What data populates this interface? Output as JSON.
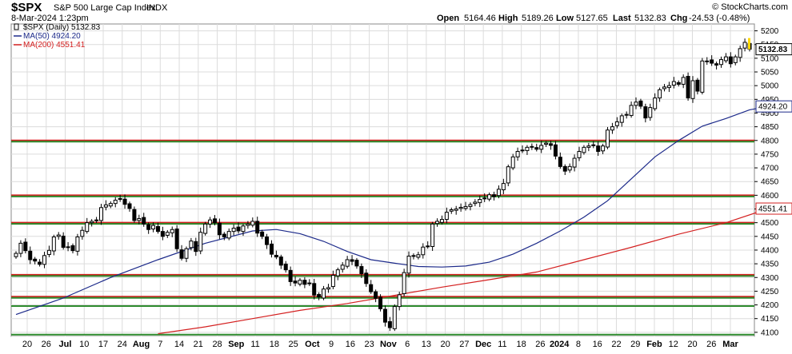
{
  "header": {
    "symbol": "$SPX",
    "name": "S&P 500 Large Cap Index",
    "exchange": "INDX",
    "date": "8-Mar-2024 1:23pm",
    "copyright": "© StockCharts.com",
    "open_label": "Open",
    "open": "5164.46",
    "high_label": "High",
    "high": "5189.26",
    "low_label": "Low",
    "low": "5127.65",
    "last_label": "Last",
    "last": "5132.83",
    "chg_label": "Chg",
    "chg": "-24.53 (-0.48%)"
  },
  "legend": [
    {
      "text": "$SPX (Daily) 5132.83",
      "color": "#000000",
      "marker": "none"
    },
    {
      "text": "MA(50) 4924.20",
      "color": "#1c2a8a",
      "marker": "line"
    },
    {
      "text": "MA(200) 4551.41",
      "color": "#d42020",
      "marker": "line"
    }
  ],
  "colors": {
    "candle": "#000000",
    "ma50": "#1c2a8a",
    "ma200": "#d42020",
    "resistance": "#d42020",
    "support": "#2e8b2e",
    "grid": "#dcdcdc",
    "last_box": "#ffd800"
  },
  "chart_data": {
    "type": "candlestick",
    "title": "$SPX S&P 500 Large Cap Index INDX",
    "ylim": [
      4085,
      5225
    ],
    "y_ticks": [
      4100,
      4150,
      4200,
      4250,
      4300,
      4350,
      4400,
      4450,
      4500,
      4550,
      4600,
      4650,
      4700,
      4750,
      4800,
      4850,
      4900,
      4950,
      5000,
      5050,
      5100,
      5150,
      5200
    ],
    "x_labels": [
      "20",
      "26",
      "Jul",
      "10",
      "17",
      "24",
      "Aug",
      "7",
      "14",
      "21",
      "28",
      "Sep",
      "11",
      "18",
      "25",
      "Oct",
      "9",
      "16",
      "23",
      "Nov",
      "6",
      "13",
      "20",
      "27",
      "Dec",
      "11",
      "18",
      "26",
      "2024",
      "8",
      "16",
      "22",
      "29",
      "Feb",
      "12",
      "20",
      "26",
      "Mar"
    ],
    "value_labels": [
      {
        "text": "5132.83",
        "value": 5132.83,
        "style": "last"
      },
      {
        "text": "4924.20",
        "value": 4924.2,
        "style": "ma50"
      },
      {
        "text": "4551.41",
        "value": 4551.41,
        "style": "ma200"
      }
    ],
    "horizontal_lines": [
      {
        "value": 4800,
        "color": "red"
      },
      {
        "value": 4600,
        "color": "red"
      },
      {
        "value": 4500,
        "color": "red"
      },
      {
        "value": 4310,
        "color": "red"
      },
      {
        "value": 4230,
        "color": "red"
      },
      {
        "value": 4800,
        "color": "green"
      },
      {
        "value": 4600,
        "color": "green"
      },
      {
        "value": 4500,
        "color": "green"
      },
      {
        "value": 4310,
        "color": "green"
      },
      {
        "value": 4230,
        "color": "green"
      },
      {
        "value": 4200,
        "color": "green"
      },
      {
        "value": 4096,
        "color": "green"
      }
    ],
    "closes": [
      4388,
      4425,
      4398,
      4365,
      4360,
      4348,
      4380,
      4399,
      4448,
      4455,
      4410,
      4412,
      4398,
      4448,
      4472,
      4500,
      4505,
      4510,
      4555,
      4565,
      4570,
      4582,
      4588,
      4567,
      4552,
      4508,
      4515,
      4495,
      4475,
      4490,
      4468,
      4450,
      4465,
      4475,
      4405,
      4370,
      4405,
      4433,
      4395,
      4465,
      4495,
      4510,
      4500,
      4456,
      4448,
      4468,
      4480,
      4470,
      4488,
      4495,
      4505,
      4462,
      4450,
      4420,
      4385,
      4375,
      4345,
      4328,
      4285,
      4280,
      4290,
      4275,
      4280,
      4236,
      4229,
      4258,
      4263,
      4308,
      4328,
      4345,
      4365,
      4359,
      4342,
      4314,
      4278,
      4248,
      4224,
      4186,
      4137,
      4117,
      4194,
      4237,
      4318,
      4378,
      4378,
      4383,
      4411,
      4415,
      4495,
      4505,
      4512,
      4538,
      4547,
      4550,
      4556,
      4559,
      4566,
      4575,
      4585,
      4590,
      4602,
      4595,
      4622,
      4643,
      4704,
      4740,
      4760,
      4765,
      4775,
      4778,
      4768,
      4782,
      4790,
      4782,
      4743,
      4705,
      4688,
      4705,
      4735,
      4760,
      4775,
      4780,
      4782,
      4760,
      4780,
      4838,
      4850,
      4868,
      4890,
      4895,
      4928,
      4940,
      4925,
      4882,
      4920,
      4955,
      4985,
      4995,
      5000,
      5015,
      5005,
      5030,
      4955,
      5018,
      4980,
      5090,
      5090,
      5082,
      5075,
      5095,
      5105,
      5080,
      5105,
      5135,
      5158,
      5132.83
    ],
    "ma50": [
      {
        "i": 0,
        "v": 4165
      },
      {
        "i": 10,
        "v": 4225
      },
      {
        "i": 20,
        "v": 4300
      },
      {
        "i": 30,
        "v": 4365
      },
      {
        "i": 40,
        "v": 4425
      },
      {
        "i": 50,
        "v": 4470
      },
      {
        "i": 55,
        "v": 4475
      },
      {
        "i": 60,
        "v": 4460
      },
      {
        "i": 65,
        "v": 4432
      },
      {
        "i": 70,
        "v": 4395
      },
      {
        "i": 75,
        "v": 4365
      },
      {
        "i": 80,
        "v": 4352
      },
      {
        "i": 85,
        "v": 4340
      },
      {
        "i": 90,
        "v": 4338
      },
      {
        "i": 95,
        "v": 4342
      },
      {
        "i": 100,
        "v": 4356
      },
      {
        "i": 105,
        "v": 4385
      },
      {
        "i": 110,
        "v": 4425
      },
      {
        "i": 115,
        "v": 4470
      },
      {
        "i": 120,
        "v": 4520
      },
      {
        "i": 125,
        "v": 4580
      },
      {
        "i": 130,
        "v": 4660
      },
      {
        "i": 135,
        "v": 4740
      },
      {
        "i": 140,
        "v": 4800
      },
      {
        "i": 145,
        "v": 4852
      },
      {
        "i": 150,
        "v": 4880
      },
      {
        "i": 155,
        "v": 4912
      },
      {
        "i": 159,
        "v": 4924.2
      }
    ],
    "ma200": [
      {
        "i": 30,
        "v": 4095
      },
      {
        "i": 40,
        "v": 4120
      },
      {
        "i": 50,
        "v": 4150
      },
      {
        "i": 60,
        "v": 4180
      },
      {
        "i": 70,
        "v": 4205
      },
      {
        "i": 80,
        "v": 4235
      },
      {
        "i": 90,
        "v": 4265
      },
      {
        "i": 100,
        "v": 4292
      },
      {
        "i": 110,
        "v": 4320
      },
      {
        "i": 120,
        "v": 4365
      },
      {
        "i": 130,
        "v": 4410
      },
      {
        "i": 140,
        "v": 4458
      },
      {
        "i": 150,
        "v": 4500
      },
      {
        "i": 159,
        "v": 4551.41
      }
    ]
  }
}
